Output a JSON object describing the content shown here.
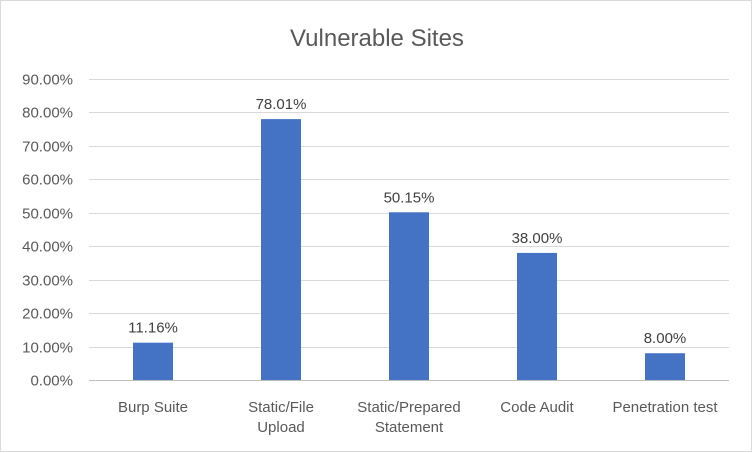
{
  "chart_data": {
    "type": "bar",
    "title": "Vulnerable Sites",
    "categories": [
      [
        "Burp Suite"
      ],
      [
        "Static/File",
        "Upload"
      ],
      [
        "Static/Prepared",
        "Statement"
      ],
      [
        "Code Audit"
      ],
      [
        "Penetration test"
      ]
    ],
    "values": [
      11.16,
      78.01,
      50.15,
      38.0,
      8.0
    ],
    "data_labels": [
      "11.16%",
      "78.01%",
      "50.15%",
      "38.00%",
      "8.00%"
    ],
    "ylim": [
      0,
      90
    ],
    "yticks": [
      "0.00%",
      "10.00%",
      "20.00%",
      "30.00%",
      "40.00%",
      "50.00%",
      "60.00%",
      "70.00%",
      "80.00%",
      "90.00%"
    ],
    "grid": true,
    "bar_color": "#4472C4"
  }
}
